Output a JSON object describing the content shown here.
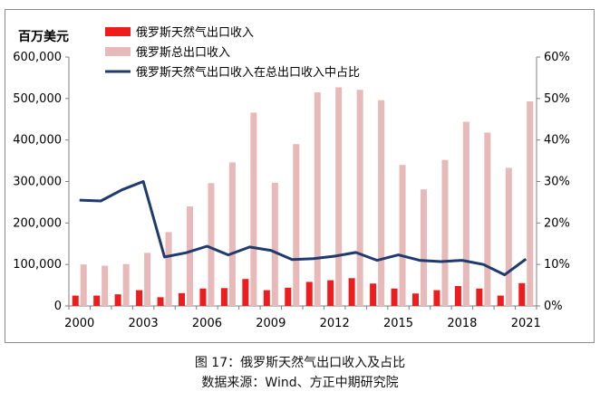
{
  "chart_data": {
    "type": "bar",
    "unit_label": "百万美元",
    "x": [
      2000,
      2001,
      2002,
      2003,
      2004,
      2005,
      2006,
      2007,
      2008,
      2009,
      2010,
      2011,
      2012,
      2013,
      2014,
      2015,
      2016,
      2017,
      2018,
      2019,
      2020,
      2021
    ],
    "x_tick_labels": [
      "2000",
      "2003",
      "2006",
      "2009",
      "2012",
      "2015",
      "2018",
      "2021"
    ],
    "x_tick_values": [
      2000,
      2003,
      2006,
      2009,
      2012,
      2015,
      2018,
      2021
    ],
    "y_left": {
      "ylim": [
        0,
        600000
      ],
      "ticks": [
        "0",
        "100,000",
        "200,000",
        "300,000",
        "400,000",
        "500,000",
        "600,000"
      ]
    },
    "y_right": {
      "ylim": [
        0,
        60
      ],
      "ticks": [
        "0%",
        "10%",
        "20%",
        "30%",
        "40%",
        "50%",
        "60%"
      ]
    },
    "series": [
      {
        "name": "俄罗斯天然气出口收入",
        "type": "bar",
        "axis": "left",
        "color": "#ee1c1c",
        "values": [
          25000,
          25000,
          28000,
          38000,
          21000,
          31000,
          42000,
          43000,
          65000,
          38000,
          44000,
          58000,
          62000,
          67000,
          54000,
          42000,
          30000,
          38000,
          48000,
          42000,
          25000,
          55000
        ]
      },
      {
        "name": "俄罗斯总出口收入",
        "type": "bar",
        "axis": "left",
        "color": "#e8b9b9",
        "values": [
          100000,
          97000,
          101000,
          128000,
          178000,
          240000,
          296000,
          346000,
          466000,
          297000,
          390000,
          515000,
          527000,
          521000,
          496000,
          340000,
          281000,
          352000,
          444000,
          418000,
          333000,
          493000
        ]
      },
      {
        "name": "俄罗斯天然气出口收入在总出口收入中占比",
        "type": "line",
        "axis": "right",
        "color": "#1e3a6e",
        "values": [
          25.5,
          25.3,
          28.0,
          30.0,
          11.8,
          12.8,
          14.4,
          12.3,
          14.2,
          13.4,
          11.2,
          11.4,
          12.0,
          12.9,
          11.0,
          12.3,
          11.0,
          10.7,
          11.0,
          10.0,
          7.5,
          11.3
        ]
      }
    ],
    "legend_position": "top-left",
    "grid": false
  },
  "caption": {
    "title": "图 17：俄罗斯天然气出口收入及占比",
    "source": "数据来源：Wind、方正中期研究院"
  }
}
